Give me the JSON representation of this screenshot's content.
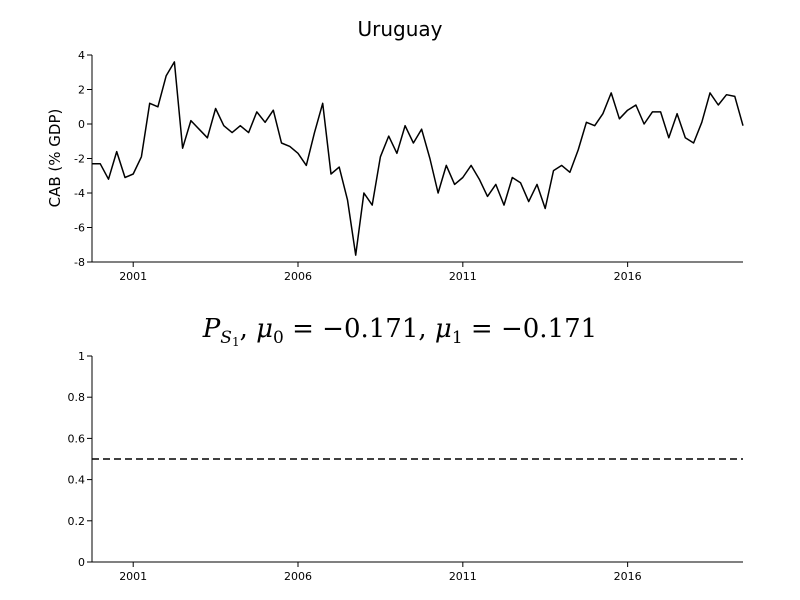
{
  "chart_data": [
    {
      "type": "line",
      "title": "Uruguay",
      "xlabel": "",
      "ylabel": "CAB (% GDP)",
      "xlim": [
        1999.75,
        2019.5
      ],
      "ylim": [
        -8,
        4
      ],
      "yticks": [
        -8,
        -6,
        -4,
        -2,
        0,
        2,
        4
      ],
      "xticks": [
        2001,
        2006,
        2011,
        2016
      ],
      "grid": false,
      "series": [
        {
          "color": "#000000",
          "x": [
            1999.75,
            2000.0,
            2000.25,
            2000.5,
            2000.75,
            2001.0,
            2001.25,
            2001.5,
            2001.75,
            2002.0,
            2002.25,
            2002.5,
            2002.75,
            2003.0,
            2003.25,
            2003.5,
            2003.75,
            2004.0,
            2004.25,
            2004.5,
            2004.75,
            2005.0,
            2005.25,
            2005.5,
            2005.75,
            2006.0,
            2006.25,
            2006.5,
            2006.75,
            2007.0,
            2007.25,
            2007.5,
            2007.75,
            2008.0,
            2008.25,
            2008.5,
            2008.75,
            2009.0,
            2009.25,
            2009.5,
            2009.75,
            2010.0,
            2010.25,
            2010.5,
            2010.75,
            2011.0,
            2011.25,
            2011.5,
            2011.75,
            2012.0,
            2012.25,
            2012.5,
            2012.75,
            2013.0,
            2013.25,
            2013.5,
            2013.75,
            2014.0,
            2014.25,
            2014.5,
            2014.75,
            2015.0,
            2015.25,
            2015.5,
            2015.75,
            2016.0,
            2016.25,
            2016.5,
            2016.75,
            2017.0,
            2017.25,
            2017.5,
            2017.75,
            2018.0,
            2018.25,
            2018.5,
            2018.75,
            2019.0,
            2019.25,
            2019.5
          ],
          "values": [
            -2.3,
            -2.3,
            -3.2,
            -1.6,
            -3.1,
            -2.9,
            -1.9,
            1.2,
            1.0,
            2.8,
            3.6,
            -1.4,
            0.2,
            -0.3,
            -0.8,
            0.9,
            -0.1,
            -0.5,
            -0.1,
            -0.5,
            0.7,
            0.1,
            0.8,
            -1.1,
            -1.3,
            -1.7,
            -2.4,
            -0.5,
            1.2,
            -2.9,
            -2.5,
            -4.4,
            -7.6,
            -4.0,
            -4.7,
            -1.9,
            -0.7,
            -1.7,
            -0.1,
            -1.1,
            -0.3,
            -2.0,
            -4.0,
            -2.4,
            -3.5,
            -3.1,
            -2.4,
            -3.2,
            -4.2,
            -3.5,
            -4.7,
            -3.1,
            -3.4,
            -4.5,
            -3.5,
            -4.9,
            -2.7,
            -2.4,
            -2.8,
            -1.5,
            0.1,
            -0.1,
            0.6,
            1.8,
            0.3,
            0.8,
            1.1,
            0.0,
            0.7,
            0.7,
            -0.8,
            0.6,
            -0.8,
            -1.1,
            0.1,
            1.8,
            1.1,
            1.7,
            1.6,
            -0.1
          ]
        }
      ]
    },
    {
      "type": "line",
      "title": "P_{S_1}, μ_0 = −0.171, μ_1 = −0.171",
      "title_parts": {
        "p": "P",
        "s": "S",
        "one": "1",
        "comma1": ", ",
        "mu": "μ",
        "sub0": "0",
        "mid": " = −0.171, ",
        "sub1": "1",
        "end": " = −0.171"
      },
      "xlabel": "",
      "ylabel": "",
      "xlim": [
        1999.75,
        2019.5
      ],
      "ylim": [
        0,
        1
      ],
      "yticks": [
        0,
        0.2,
        0.4,
        0.6,
        0.8,
        1
      ],
      "ytick_labels": [
        "0",
        "0.2",
        "0.4",
        "0.6",
        "0.8",
        "1"
      ],
      "xticks": [
        2001,
        2006,
        2011,
        2016
      ],
      "grid": false,
      "series": [
        {
          "style": "dashed",
          "color": "#000000",
          "x": [
            1999.75,
            2019.5
          ],
          "values": [
            0.5,
            0.5
          ]
        }
      ]
    }
  ]
}
